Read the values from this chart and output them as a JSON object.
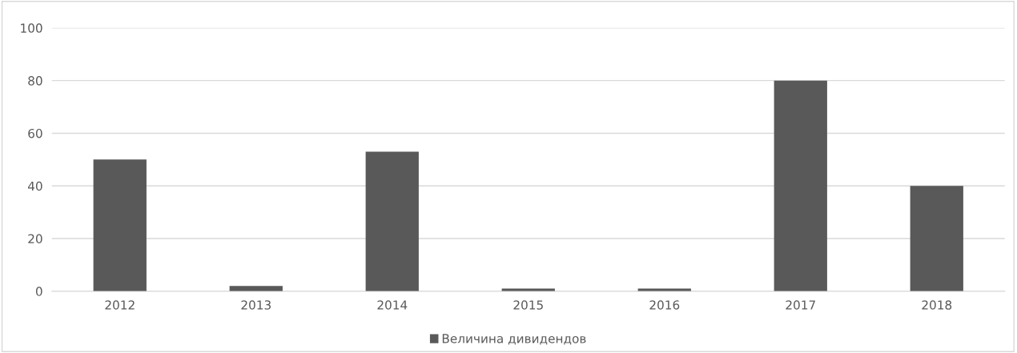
{
  "chart_data": {
    "type": "bar",
    "categories": [
      "2012",
      "2013",
      "2014",
      "2015",
      "2016",
      "2017",
      "2018"
    ],
    "series": [
      {
        "name": "Величина дивидендов",
        "color": "#595959",
        "values": [
          50,
          2,
          53,
          1,
          1,
          80,
          40
        ]
      }
    ],
    "ylim": [
      0,
      100
    ],
    "yticks": [
      0,
      20,
      40,
      60,
      80,
      100
    ],
    "grid": "y",
    "legend": "bottom"
  }
}
